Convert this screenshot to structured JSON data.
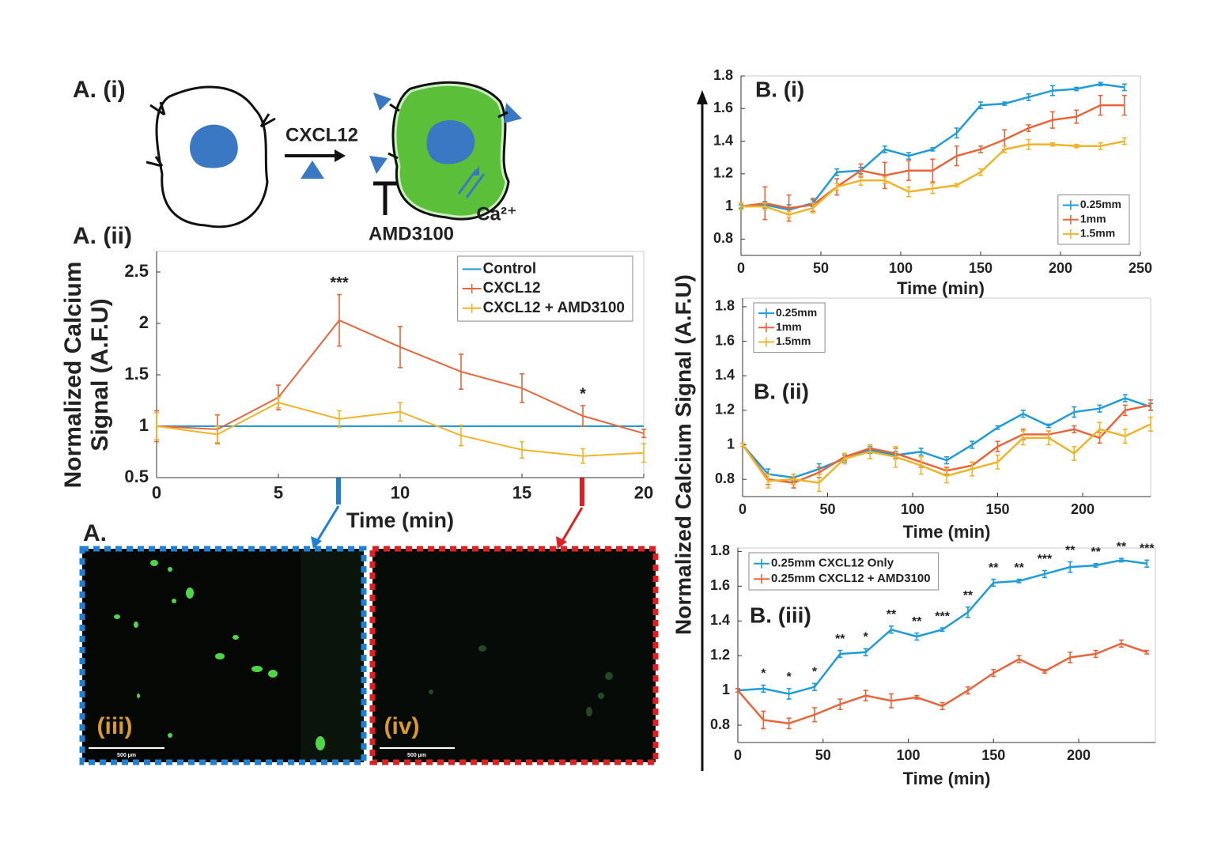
{
  "figure": {
    "panel_a_i": "A. (i)",
    "cxcl12": "CXCL12",
    "amd3100": "AMD3100",
    "calcium": "Ca²⁺",
    "panel_a": "A.",
    "image_iii": "(iii)",
    "image_iv": "(iv)",
    "scale_iii": "500 µm",
    "scale_iv": "500 µm",
    "shared_ylabel": "Normalized Calcium Signal (A.F.U)"
  },
  "chart_data": [
    {
      "type": "line",
      "title": "A. (ii)",
      "xlabel": "Time (min)",
      "ylabel": "Normalized Calcium Signal (A.F.U)",
      "x": [
        0,
        2.5,
        5,
        7.5,
        10,
        12.5,
        15,
        17.5,
        20
      ],
      "xlim": [
        0,
        20
      ],
      "xticks": [
        0,
        5,
        10,
        15,
        20
      ],
      "ylim": [
        0.5,
        2.7
      ],
      "yticks": [
        0.5,
        1,
        1.5,
        2,
        2.5
      ],
      "legend": "upper right",
      "series": [
        {
          "name": "Control",
          "color": "#1f9cd6",
          "values": [
            1,
            1,
            1,
            1,
            1,
            1,
            1,
            1,
            1
          ]
        },
        {
          "name": "CXCL12",
          "color": "#e8653a",
          "values": [
            1,
            0.97,
            1.28,
            2.03,
            1.77,
            1.53,
            1.37,
            1.1,
            0.93
          ],
          "errors": [
            0.15,
            0.14,
            0.12,
            0.25,
            0.2,
            0.17,
            0.14,
            0.1,
            0.04
          ],
          "significance": [
            null,
            null,
            null,
            "***",
            null,
            null,
            null,
            "*",
            null
          ]
        },
        {
          "name": "CXCL12 + AMD3100",
          "color": "#f0b428",
          "values": [
            1,
            0.92,
            1.23,
            1.07,
            1.14,
            0.91,
            0.77,
            0.71,
            0.74
          ],
          "errors": [
            0.13,
            0.08,
            0.05,
            0.08,
            0.09,
            0.1,
            0.08,
            0.07,
            0.09
          ]
        }
      ]
    },
    {
      "type": "line",
      "title": "B. (i)",
      "xlabel": "Time (min)",
      "x": [
        0,
        15,
        30,
        45,
        60,
        75,
        90,
        105,
        120,
        135,
        150,
        165,
        180,
        195,
        210,
        225,
        240
      ],
      "xlim": [
        0,
        250
      ],
      "xticks": [
        0,
        50,
        100,
        150,
        200,
        250
      ],
      "ylim": [
        0.7,
        1.8
      ],
      "yticks": [
        0.8,
        1,
        1.2,
        1.4,
        1.6,
        1.8
      ],
      "legend": "lower right",
      "series": [
        {
          "name": "0.25mm",
          "color": "#1f9cd6",
          "values": [
            1,
            1.01,
            0.98,
            1.02,
            1.21,
            1.22,
            1.35,
            1.31,
            1.35,
            1.45,
            1.62,
            1.63,
            1.67,
            1.71,
            1.72,
            1.75,
            1.73
          ],
          "errors": [
            0.01,
            0.02,
            0.03,
            0.02,
            0.02,
            0.02,
            0.02,
            0.02,
            0.01,
            0.03,
            0.02,
            0.01,
            0.02,
            0.03,
            0.01,
            0.01,
            0.02
          ]
        },
        {
          "name": "1mm",
          "color": "#e8653a",
          "values": [
            1,
            1.02,
            0.99,
            1.01,
            1.12,
            1.22,
            1.19,
            1.22,
            1.22,
            1.31,
            1.35,
            1.41,
            1.48,
            1.53,
            1.55,
            1.62,
            1.62
          ],
          "errors": [
            0.02,
            0.1,
            0.08,
            0.04,
            0.05,
            0.04,
            0.08,
            0.06,
            0.07,
            0.06,
            0.02,
            0.06,
            0.02,
            0.05,
            0.04,
            0.06,
            0.06
          ]
        },
        {
          "name": "1.5mm",
          "color": "#f0b428",
          "values": [
            1,
            1.0,
            0.95,
            0.99,
            1.12,
            1.16,
            1.16,
            1.09,
            1.11,
            1.13,
            1.21,
            1.35,
            1.38,
            1.38,
            1.37,
            1.37,
            1.4
          ],
          "errors": [
            0.02,
            0.02,
            0.02,
            0.03,
            0.02,
            0.03,
            0.02,
            0.03,
            0.03,
            0.01,
            0.02,
            0.02,
            0.03,
            0.01,
            0.01,
            0.02,
            0.02
          ]
        }
      ]
    },
    {
      "type": "line",
      "title": "B. (ii)",
      "xlabel": "Time (min)",
      "x": [
        0,
        15,
        30,
        45,
        60,
        75,
        90,
        105,
        120,
        135,
        150,
        165,
        180,
        195,
        210,
        225,
        240
      ],
      "xlim": [
        0,
        240
      ],
      "xticks": [
        0,
        50,
        100,
        150,
        200
      ],
      "ylim": [
        0.7,
        1.85
      ],
      "yticks": [
        0.8,
        1,
        1.2,
        1.4,
        1.6,
        1.8
      ],
      "legend": "upper left",
      "series": [
        {
          "name": "0.25mm",
          "color": "#1f9cd6",
          "values": [
            1,
            0.83,
            0.81,
            0.86,
            0.92,
            0.97,
            0.94,
            0.96,
            0.91,
            1.0,
            1.1,
            1.18,
            1.11,
            1.19,
            1.21,
            1.27,
            1.22
          ],
          "errors": [
            0.01,
            0.03,
            0.02,
            0.03,
            0.02,
            0.02,
            0.02,
            0.02,
            0.02,
            0.02,
            0.01,
            0.02,
            0.01,
            0.03,
            0.02,
            0.02,
            0.02
          ]
        },
        {
          "name": "1mm",
          "color": "#e8653a",
          "values": [
            1,
            0.8,
            0.78,
            0.84,
            0.93,
            0.98,
            0.95,
            0.9,
            0.85,
            0.88,
            0.99,
            1.06,
            1.06,
            1.09,
            1.04,
            1.2,
            1.23
          ],
          "errors": [
            0.01,
            0.03,
            0.03,
            0.03,
            0.02,
            0.02,
            0.03,
            0.03,
            0.02,
            0.02,
            0.03,
            0.03,
            0.02,
            0.02,
            0.03,
            0.03,
            0.03
          ]
        },
        {
          "name": "1.5mm",
          "color": "#f0b428",
          "values": [
            1,
            0.79,
            0.8,
            0.78,
            0.92,
            0.96,
            0.93,
            0.88,
            0.82,
            0.86,
            0.9,
            1.04,
            1.04,
            0.95,
            1.09,
            1.05,
            1.12
          ],
          "errors": [
            0.01,
            0.04,
            0.03,
            0.05,
            0.03,
            0.04,
            0.06,
            0.05,
            0.04,
            0.04,
            0.04,
            0.04,
            0.04,
            0.04,
            0.04,
            0.04,
            0.04
          ]
        }
      ]
    },
    {
      "type": "line",
      "title": "B. (iii)",
      "xlabel": "Time (min)",
      "x": [
        0,
        15,
        30,
        45,
        60,
        75,
        90,
        105,
        120,
        135,
        150,
        165,
        180,
        195,
        210,
        225,
        240
      ],
      "xlim": [
        0,
        245
      ],
      "xticks": [
        0,
        50,
        100,
        150,
        200
      ],
      "ylim": [
        0.7,
        1.82
      ],
      "yticks": [
        0.8,
        1,
        1.2,
        1.4,
        1.6,
        1.8
      ],
      "legend": "upper left",
      "series": [
        {
          "name": "0.25mm CXCL12 Only",
          "color": "#1f9cd6",
          "values": [
            1,
            1.01,
            0.98,
            1.02,
            1.21,
            1.22,
            1.35,
            1.31,
            1.35,
            1.45,
            1.62,
            1.63,
            1.67,
            1.71,
            1.72,
            1.75,
            1.73
          ],
          "errors": [
            0.01,
            0.02,
            0.03,
            0.02,
            0.02,
            0.02,
            0.02,
            0.02,
            0.01,
            0.03,
            0.02,
            0.01,
            0.02,
            0.03,
            0.01,
            0.01,
            0.02
          ],
          "significance": [
            null,
            "*",
            "*",
            "*",
            "**",
            "*",
            "**",
            "**",
            "***",
            "**",
            "**",
            "**",
            "***",
            "**",
            "**",
            "**",
            "***"
          ]
        },
        {
          "name": "0.25mm CXCL12 + AMD3100",
          "color": "#e8653a",
          "values": [
            1,
            0.83,
            0.81,
            0.86,
            0.92,
            0.97,
            0.94,
            0.96,
            0.91,
            1.0,
            1.1,
            1.18,
            1.11,
            1.19,
            1.21,
            1.27,
            1.22
          ],
          "errors": [
            0.01,
            0.05,
            0.03,
            0.04,
            0.03,
            0.03,
            0.04,
            0.01,
            0.02,
            0.02,
            0.02,
            0.02,
            0.01,
            0.03,
            0.02,
            0.02,
            0.01
          ]
        }
      ]
    }
  ]
}
